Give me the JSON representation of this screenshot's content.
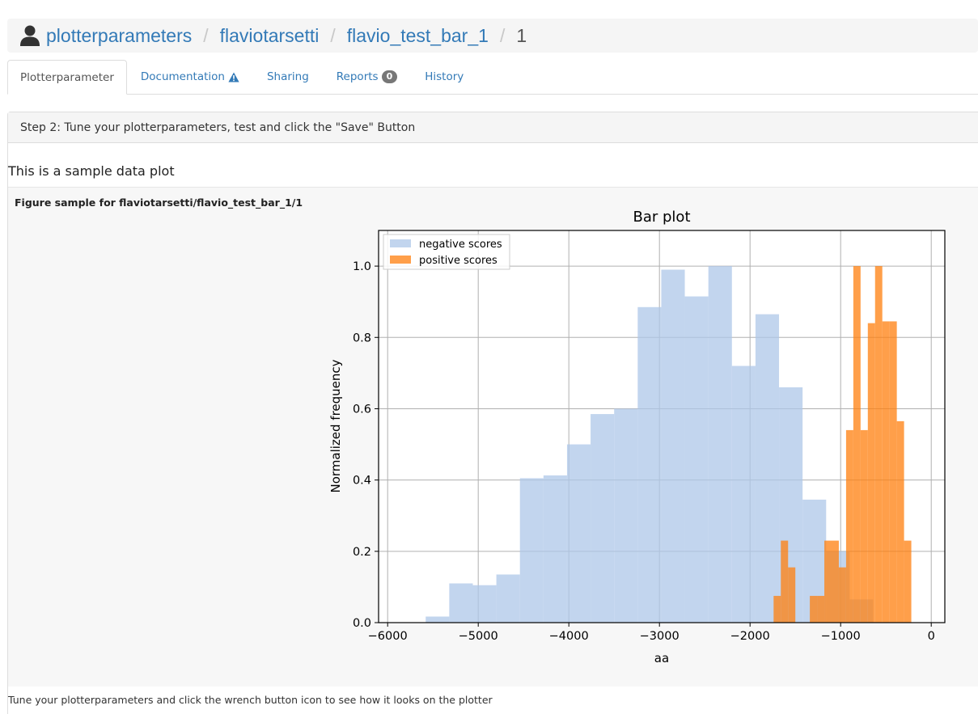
{
  "breadcrumb": {
    "items": [
      "plotterparameters",
      "flaviotarsetti",
      "flavio_test_bar_1"
    ],
    "current": "1",
    "separator": "/",
    "icon": "user-icon"
  },
  "tabs": [
    {
      "label": "Plotterparameter",
      "active": true
    },
    {
      "label": "Documentation",
      "icon": "warning-icon"
    },
    {
      "label": "Sharing"
    },
    {
      "label": "Reports",
      "badge": "0"
    },
    {
      "label": "History"
    }
  ],
  "panel": {
    "heading": "Step 2: Tune your plotterparameters, test and click the \"Save\" Button",
    "sample_title": "This is a sample data plot",
    "figure_caption": "Figure sample for flaviotarsetti/flavio_test_bar_1/1",
    "footer_note": "Tune your plotterparameters and click the wrench button icon to see how it looks on the plotter"
  },
  "colors": {
    "link": "#337ab7",
    "negative": "#aec7e8",
    "positive": "#ff7f0e"
  },
  "chart_data": {
    "type": "bar",
    "title": "Bar plot",
    "xlabel": "aa",
    "ylabel": "Normalized frequency",
    "xlim": [
      -6100,
      150
    ],
    "ylim": [
      0,
      1.1
    ],
    "xticks": [
      -6000,
      -5000,
      -4000,
      -3000,
      -2000,
      -1000,
      0
    ],
    "yticks": [
      0.0,
      0.2,
      0.4,
      0.6,
      0.8,
      1.0
    ],
    "grid": true,
    "legend_position": "top-left",
    "series": [
      {
        "name": "negative scores",
        "bin_edges": [
          -5580,
          -5320,
          -5060,
          -4800,
          -4540,
          -4280,
          -4020,
          -3760,
          -3500,
          -3240,
          -2980,
          -2720,
          -2460,
          -2200,
          -1940,
          -1680,
          -1420,
          -1160,
          -900,
          -640
        ],
        "values": [
          0.017,
          0.11,
          0.105,
          0.135,
          0.405,
          0.413,
          0.5,
          0.585,
          0.6,
          0.885,
          0.99,
          0.915,
          1.0,
          0.72,
          0.865,
          0.66,
          0.345,
          0.2,
          0.065
        ]
      },
      {
        "name": "positive scores",
        "bin_edges": [
          -1740,
          -1660,
          -1580,
          -1500,
          -1420,
          -1340,
          -1260,
          -1180,
          -1100,
          -1020,
          -940,
          -860,
          -780,
          -700,
          -620,
          -540,
          -460,
          -380,
          -300,
          -220,
          -140
        ],
        "values": [
          0.075,
          0.23,
          0.155,
          0.0,
          0.0,
          0.075,
          0.075,
          0.23,
          0.23,
          0.155,
          0.54,
          1.0,
          0.54,
          0.84,
          1.0,
          0.845,
          0.845,
          0.565,
          0.23,
          0.0
        ]
      }
    ]
  }
}
